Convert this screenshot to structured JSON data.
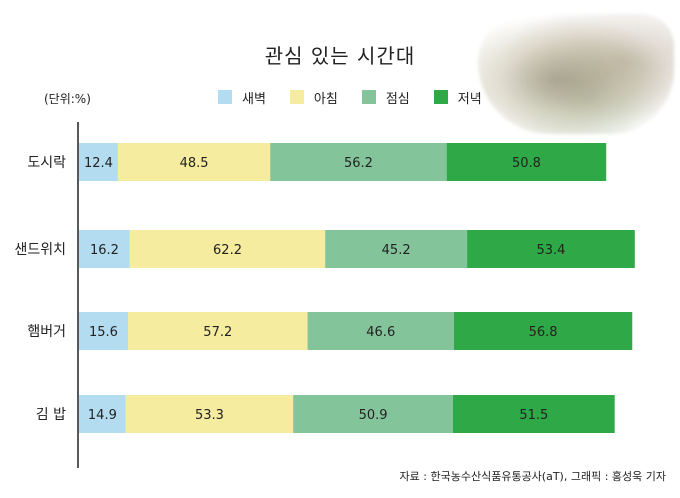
{
  "chart_data": {
    "type": "bar",
    "orientation": "horizontal",
    "stacked": true,
    "title": "관심 있는 시간대",
    "unit_label": "(단위:%)",
    "categories": [
      "도시락",
      "샌드위치",
      "햄버거",
      "김 밥"
    ],
    "series": [
      {
        "name": "새벽",
        "color": "#b3dcf0",
        "values": [
          12.4,
          16.2,
          15.6,
          14.9
        ],
        "labels": [
          "12.4",
          "16.2",
          "15.6",
          "14.9"
        ]
      },
      {
        "name": "아침",
        "color": "#f6eca0",
        "values": [
          48.5,
          62.2,
          57.2,
          53.3
        ],
        "labels": [
          "48.5",
          "62.2",
          "57.2",
          "53.3"
        ]
      },
      {
        "name": "점심",
        "color": "#83c49a",
        "values": [
          56.2,
          45.2,
          46.6,
          50.9
        ],
        "labels": [
          "56.2",
          "45.2",
          "46.6",
          "50.9"
        ]
      },
      {
        "name": "저녁",
        "color": "#2fa847",
        "values": [
          50.8,
          53.4,
          56.8,
          51.5
        ],
        "labels": [
          "50.8",
          "53.4",
          "56.8",
          "51.5"
        ]
      }
    ],
    "legend_position": "top"
  },
  "source_note": "자료 : 한국농수산식품유통공사(aT), 그래픽 : 홍성욱 기자"
}
